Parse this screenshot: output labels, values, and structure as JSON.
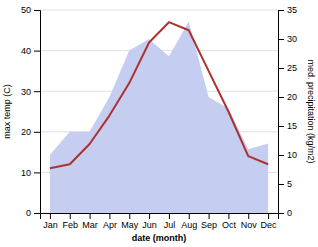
{
  "chart_data": {
    "type": "line",
    "categories": [
      "Jan",
      "Feb",
      "Mar",
      "Apr",
      "May",
      "Jun",
      "Jul",
      "Aug",
      "Sep",
      "Oct",
      "Nov",
      "Dec"
    ],
    "series": [
      {
        "type": "area",
        "axis": "y2",
        "color": "#c5cdf0",
        "values": [
          10,
          14,
          14,
          20,
          28,
          30,
          27,
          33,
          20,
          18,
          11,
          12
        ]
      },
      {
        "type": "line",
        "color": "#b03030",
        "values": [
          11,
          12,
          17,
          24,
          32,
          42,
          47,
          45,
          35,
          25,
          14,
          12
        ]
      }
    ],
    "xlabel": "date (month)",
    "ylabel": "max temp (C)",
    "y2label": "med. precipitation (kg/m2)",
    "ylim": [
      0,
      50
    ],
    "yticks": [
      0,
      10,
      20,
      30,
      40,
      50
    ],
    "y2lim": [
      0,
      35
    ],
    "y2ticks": [
      0,
      5,
      10,
      15,
      20,
      25,
      30,
      35
    ],
    "grid": true
  }
}
